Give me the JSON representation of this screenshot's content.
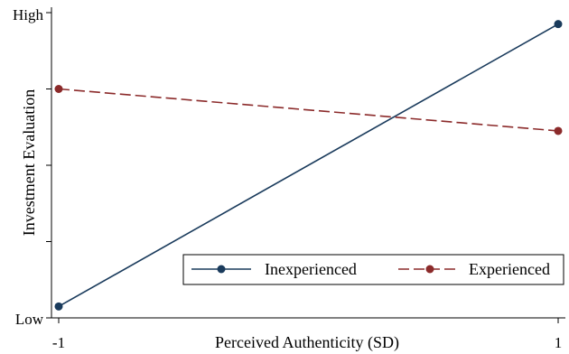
{
  "chart_data": {
    "type": "line",
    "title": "",
    "xlabel": "Perceived Authenticity (SD)",
    "ylabel": "Investment Evaluation",
    "x": [
      -1,
      1
    ],
    "x_tick_labels": [
      "-1",
      "1"
    ],
    "y_tick_labels": [
      "Low",
      "High"
    ],
    "y_scale": "ordinal (unnumbered), Low to High",
    "ylim": [
      0,
      4
    ],
    "xlim": [
      -1,
      1
    ],
    "grid": false,
    "legend_position": "bottom-right",
    "series": [
      {
        "name": "Inexperienced",
        "values": [
          0.15,
          3.85
        ],
        "color": "#1a3b5c",
        "style": "solid",
        "marker": "circle"
      },
      {
        "name": "Experienced",
        "values": [
          3.0,
          2.45
        ],
        "color": "#8b2a2a",
        "style": "dashed",
        "marker": "circle"
      }
    ]
  }
}
